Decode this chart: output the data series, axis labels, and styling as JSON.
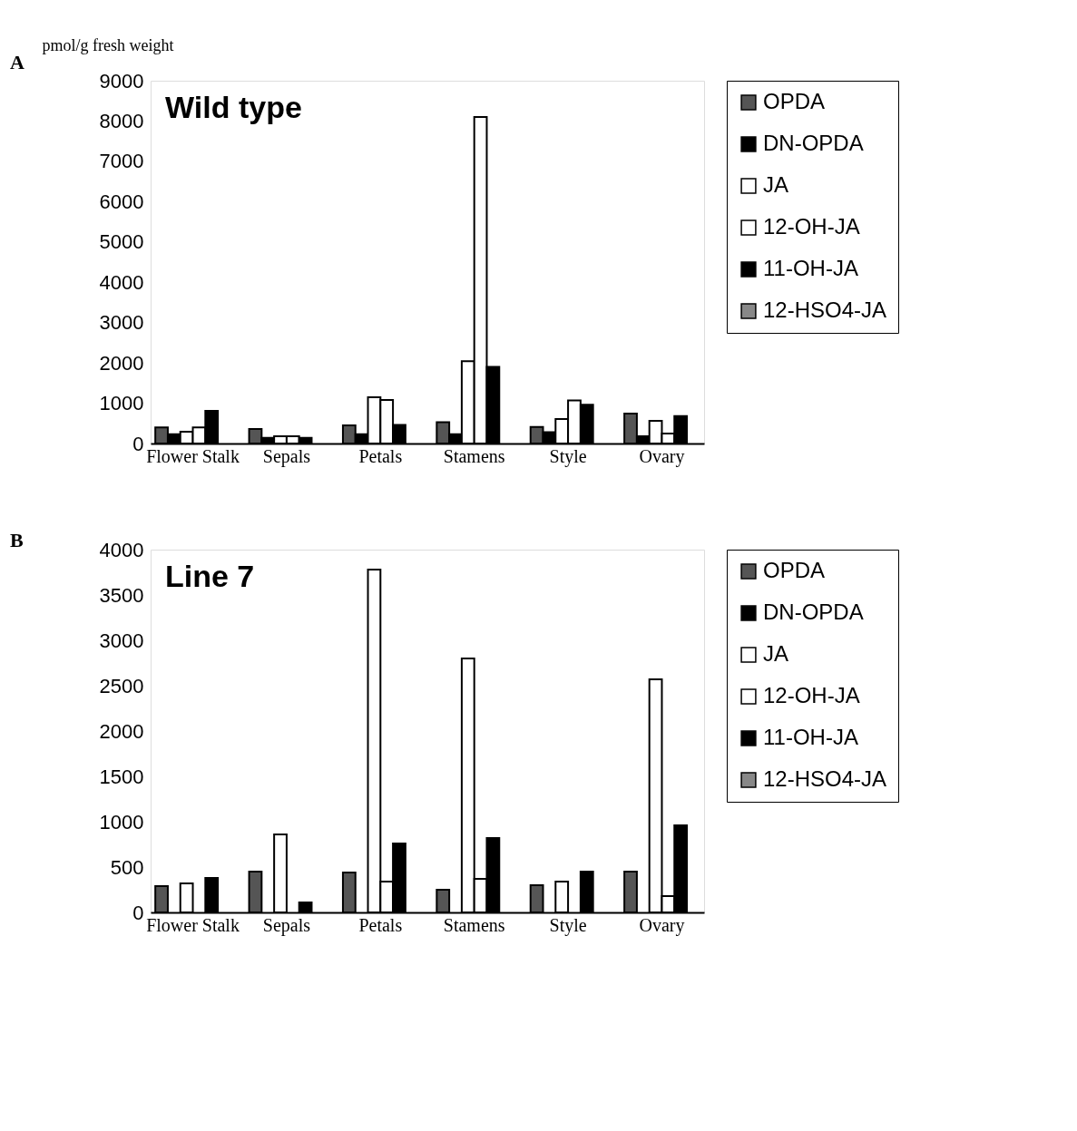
{
  "chart_data": [
    {
      "type": "bar",
      "title": "Wild type",
      "ylabel": "pmol/g fresh weight",
      "annotations": [
        "A"
      ],
      "categories": [
        "Flower Stalk",
        "Sepals",
        "Petals",
        "Stamens",
        "Style",
        "Ovary"
      ],
      "series": [
        {
          "name": "OPDA",
          "color": "#555555",
          "values": [
            400,
            360,
            450,
            530,
            410,
            740
          ]
        },
        {
          "name": "DN-OPDA",
          "color": "#000000",
          "values": [
            230,
            140,
            230,
            230,
            280,
            180
          ]
        },
        {
          "name": "JA",
          "color": "#ffffff",
          "values": [
            290,
            180,
            1150,
            2040,
            610,
            560
          ]
        },
        {
          "name": "12-OH-JA",
          "color": "#ffffff",
          "values": [
            400,
            180,
            1080,
            8100,
            1070,
            250
          ]
        },
        {
          "name": "11-OH-JA",
          "color": "#000000",
          "values": [
            810,
            140,
            460,
            1900,
            960,
            680
          ]
        },
        {
          "name": "12-HSO4-JA",
          "color": "#888888",
          "values": [
            null,
            null,
            null,
            null,
            null,
            null
          ]
        }
      ],
      "ylim": [
        0,
        9000
      ],
      "yticks": [
        0,
        1000,
        2000,
        3000,
        4000,
        5000,
        6000,
        7000,
        8000,
        9000
      ],
      "grid": false,
      "legend": "right"
    },
    {
      "type": "bar",
      "title": "Line 7",
      "annotations": [
        "B"
      ],
      "categories": [
        "Flower Stalk",
        "Sepals",
        "Petals",
        "Stamens",
        "Style",
        "Ovary"
      ],
      "series": [
        {
          "name": "OPDA",
          "color": "#555555",
          "values": [
            290,
            450,
            440,
            250,
            300,
            450
          ]
        },
        {
          "name": "DN-OPDA",
          "color": "#000000",
          "values": [
            null,
            null,
            null,
            null,
            null,
            null
          ]
        },
        {
          "name": "JA",
          "color": "#ffffff",
          "values": [
            320,
            860,
            3780,
            2800,
            340,
            2570
          ]
        },
        {
          "name": "12-OH-JA",
          "color": "#ffffff",
          "values": [
            null,
            null,
            340,
            370,
            null,
            180
          ]
        },
        {
          "name": "11-OH-JA",
          "color": "#000000",
          "values": [
            380,
            110,
            760,
            820,
            450,
            960
          ]
        },
        {
          "name": "12-HSO4-JA",
          "color": "#888888",
          "values": [
            null,
            null,
            null,
            null,
            null,
            null
          ]
        }
      ],
      "ylim": [
        0,
        4000
      ],
      "yticks": [
        0,
        500,
        1000,
        1500,
        2000,
        2500,
        3000,
        3500,
        4000
      ],
      "grid": false,
      "legend": "right"
    }
  ]
}
